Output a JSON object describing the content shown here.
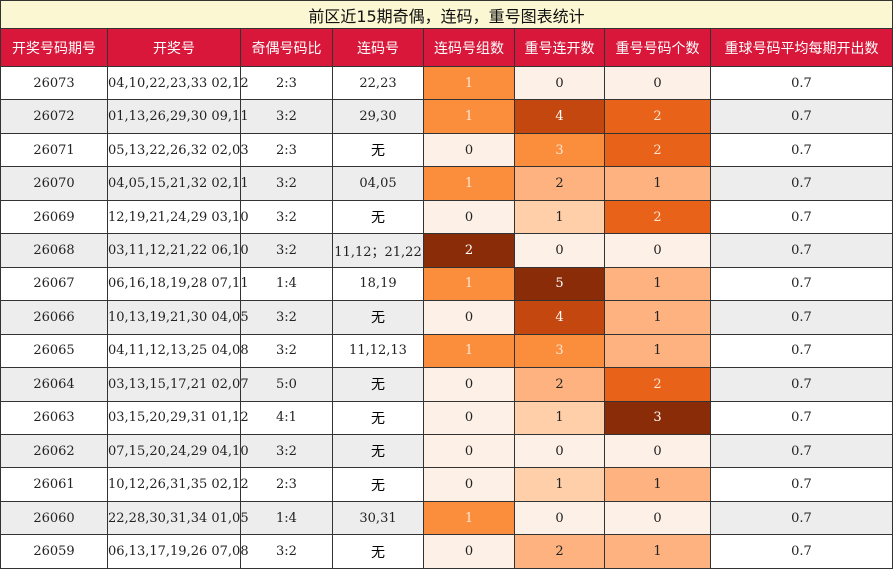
{
  "title": "前区近15期奇偶，连码，重号图表统计",
  "headers": [
    "开奖号码期号",
    "开奖号",
    "奇偶号码比",
    "连码号",
    "连码号组数",
    "重号连开数",
    "重号号码个数",
    "重球号码平均每期开出数"
  ],
  "rows": [
    {
      "issue": "26073",
      "numbers": "04,10,22,23,33 02,12",
      "ratio": "2:3",
      "consecutive": "22,23",
      "groups": "1",
      "repeat_streak": "0",
      "repeat_count": "0",
      "avg": "0.7"
    },
    {
      "issue": "26072",
      "numbers": "01,13,26,29,30 09,11",
      "ratio": "3:2",
      "consecutive": "29,30",
      "groups": "1",
      "repeat_streak": "4",
      "repeat_count": "2",
      "avg": "0.7"
    },
    {
      "issue": "26071",
      "numbers": "05,13,22,26,32 02,03",
      "ratio": "2:3",
      "consecutive": "无",
      "groups": "0",
      "repeat_streak": "3",
      "repeat_count": "2",
      "avg": "0.7"
    },
    {
      "issue": "26070",
      "numbers": "04,05,15,21,32 02,11",
      "ratio": "3:2",
      "consecutive": "04,05",
      "groups": "1",
      "repeat_streak": "2",
      "repeat_count": "1",
      "avg": "0.7"
    },
    {
      "issue": "26069",
      "numbers": "12,19,21,24,29 03,10",
      "ratio": "3:2",
      "consecutive": "无",
      "groups": "0",
      "repeat_streak": "1",
      "repeat_count": "2",
      "avg": "0.7"
    },
    {
      "issue": "26068",
      "numbers": "03,11,12,21,22 06,10",
      "ratio": "3:2",
      "consecutive": "11,12；21,22",
      "groups": "2",
      "repeat_streak": "0",
      "repeat_count": "0",
      "avg": "0.7"
    },
    {
      "issue": "26067",
      "numbers": "06,16,18,19,28 07,11",
      "ratio": "1:4",
      "consecutive": "18,19",
      "groups": "1",
      "repeat_streak": "5",
      "repeat_count": "1",
      "avg": "0.7"
    },
    {
      "issue": "26066",
      "numbers": "10,13,19,21,30 04,05",
      "ratio": "3:2",
      "consecutive": "无",
      "groups": "0",
      "repeat_streak": "4",
      "repeat_count": "1",
      "avg": "0.7"
    },
    {
      "issue": "26065",
      "numbers": "04,11,12,13,25 04,08",
      "ratio": "3:2",
      "consecutive": "11,12,13",
      "groups": "1",
      "repeat_streak": "3",
      "repeat_count": "1",
      "avg": "0.7"
    },
    {
      "issue": "26064",
      "numbers": "03,13,15,17,21 02,07",
      "ratio": "5:0",
      "consecutive": "无",
      "groups": "0",
      "repeat_streak": "2",
      "repeat_count": "2",
      "avg": "0.7"
    },
    {
      "issue": "26063",
      "numbers": "03,15,20,29,31 01,12",
      "ratio": "4:1",
      "consecutive": "无",
      "groups": "0",
      "repeat_streak": "1",
      "repeat_count": "3",
      "avg": "0.7"
    },
    {
      "issue": "26062",
      "numbers": "07,15,20,24,29 04,10",
      "ratio": "3:2",
      "consecutive": "无",
      "groups": "0",
      "repeat_streak": "0",
      "repeat_count": "0",
      "avg": "0.7"
    },
    {
      "issue": "26061",
      "numbers": "10,12,26,31,35 02,12",
      "ratio": "2:3",
      "consecutive": "无",
      "groups": "0",
      "repeat_streak": "1",
      "repeat_count": "1",
      "avg": "0.7"
    },
    {
      "issue": "26060",
      "numbers": "22,28,30,31,34 01,05",
      "ratio": "1:4",
      "consecutive": "30,31",
      "groups": "1",
      "repeat_streak": "0",
      "repeat_count": "0",
      "avg": "0.7"
    },
    {
      "issue": "26059",
      "numbers": "06,13,17,19,26 07,08",
      "ratio": "3:2",
      "consecutive": "无",
      "groups": "0",
      "repeat_streak": "2",
      "repeat_count": "1",
      "avg": "0.7"
    }
  ],
  "heat_levels": {
    "groups": [
      "l0",
      "l3",
      "l7"
    ],
    "repeat_streak": [
      "l0",
      "l1",
      "l2",
      "l3",
      "l6",
      "l7"
    ],
    "repeat_count": [
      "l0",
      "l2",
      "l5",
      "l7"
    ]
  },
  "colors": {
    "title_bg": "#fcf7d3",
    "header_bg": "#d9173a",
    "header_text": "#ffffff",
    "stripe_bg": "#ededed",
    "border": "#333333",
    "heat_scale": [
      "#fdf0e7",
      "#ffcfaa",
      "#fdb27f",
      "#fa8e3c",
      "#ef7d22",
      "#e8621a",
      "#c4470f",
      "#8a2c08"
    ]
  }
}
